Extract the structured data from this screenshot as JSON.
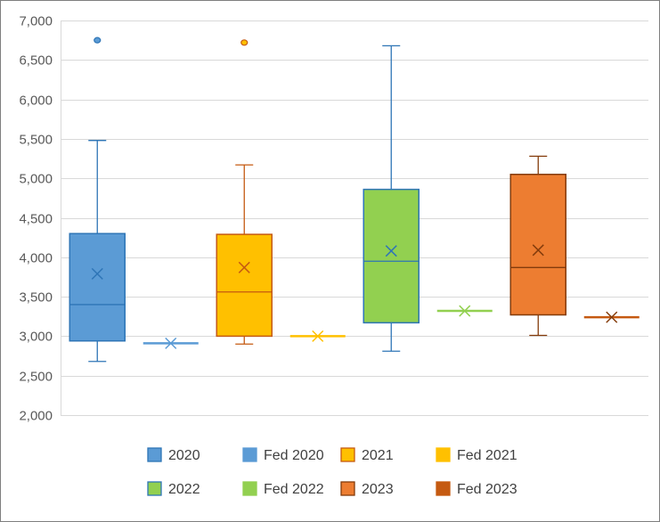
{
  "chart_data": {
    "type": "boxplot",
    "title": "",
    "xlabel": "",
    "ylabel": "",
    "ylim": [
      2000,
      7000
    ],
    "yticks": [
      2000,
      2500,
      3000,
      3500,
      4000,
      4500,
      5000,
      5500,
      6000,
      6500,
      7000
    ],
    "ytick_labels": [
      "2,000",
      "2,500",
      "3,000",
      "3,500",
      "4,000",
      "4,500",
      "5,000",
      "5,500",
      "6,000",
      "6,500",
      "7,000"
    ],
    "grid": true,
    "legend_position": "bottom",
    "series": [
      {
        "name": "2020",
        "kind": "box",
        "fill": "#5b9bd5",
        "stroke": "#2e75b6",
        "q1": 2940,
        "median": 3400,
        "q3": 4300,
        "whisker_low": 2680,
        "whisker_high": 5480,
        "mean": 3790,
        "outliers": [
          6750
        ]
      },
      {
        "name": "Fed 2020",
        "kind": "flat",
        "fill": "#5b9bd5",
        "stroke": "#5b9bd5",
        "value": 2910,
        "mean": 2910
      },
      {
        "name": "2021",
        "kind": "box",
        "fill": "#ffc000",
        "stroke": "#c55a11",
        "q1": 3000,
        "median": 3560,
        "q3": 4290,
        "whisker_low": 2900,
        "whisker_high": 5170,
        "mean": 3870,
        "outliers": [
          6720
        ]
      },
      {
        "name": "Fed 2021",
        "kind": "flat",
        "fill": "#ffc000",
        "stroke": "#ffc000",
        "value": 3000,
        "mean": 3000
      },
      {
        "name": "2022",
        "kind": "box",
        "fill": "#92d050",
        "stroke": "#2e75b6",
        "q1": 3170,
        "median": 3950,
        "q3": 4860,
        "whisker_low": 2810,
        "whisker_high": 6680,
        "mean": 4080,
        "outliers": []
      },
      {
        "name": "Fed 2022",
        "kind": "flat",
        "fill": "#92d050",
        "stroke": "#92d050",
        "value": 3320,
        "mean": 3320
      },
      {
        "name": "2023",
        "kind": "box",
        "fill": "#ed7d31",
        "stroke": "#843c0c",
        "q1": 3270,
        "median": 3870,
        "q3": 5050,
        "whisker_low": 3010,
        "whisker_high": 5280,
        "mean": 4090,
        "outliers": []
      },
      {
        "name": "Fed 2023",
        "kind": "flat",
        "fill": "#c55a11",
        "stroke": "#843c0c",
        "value": 3240,
        "mean": 3240
      }
    ]
  }
}
